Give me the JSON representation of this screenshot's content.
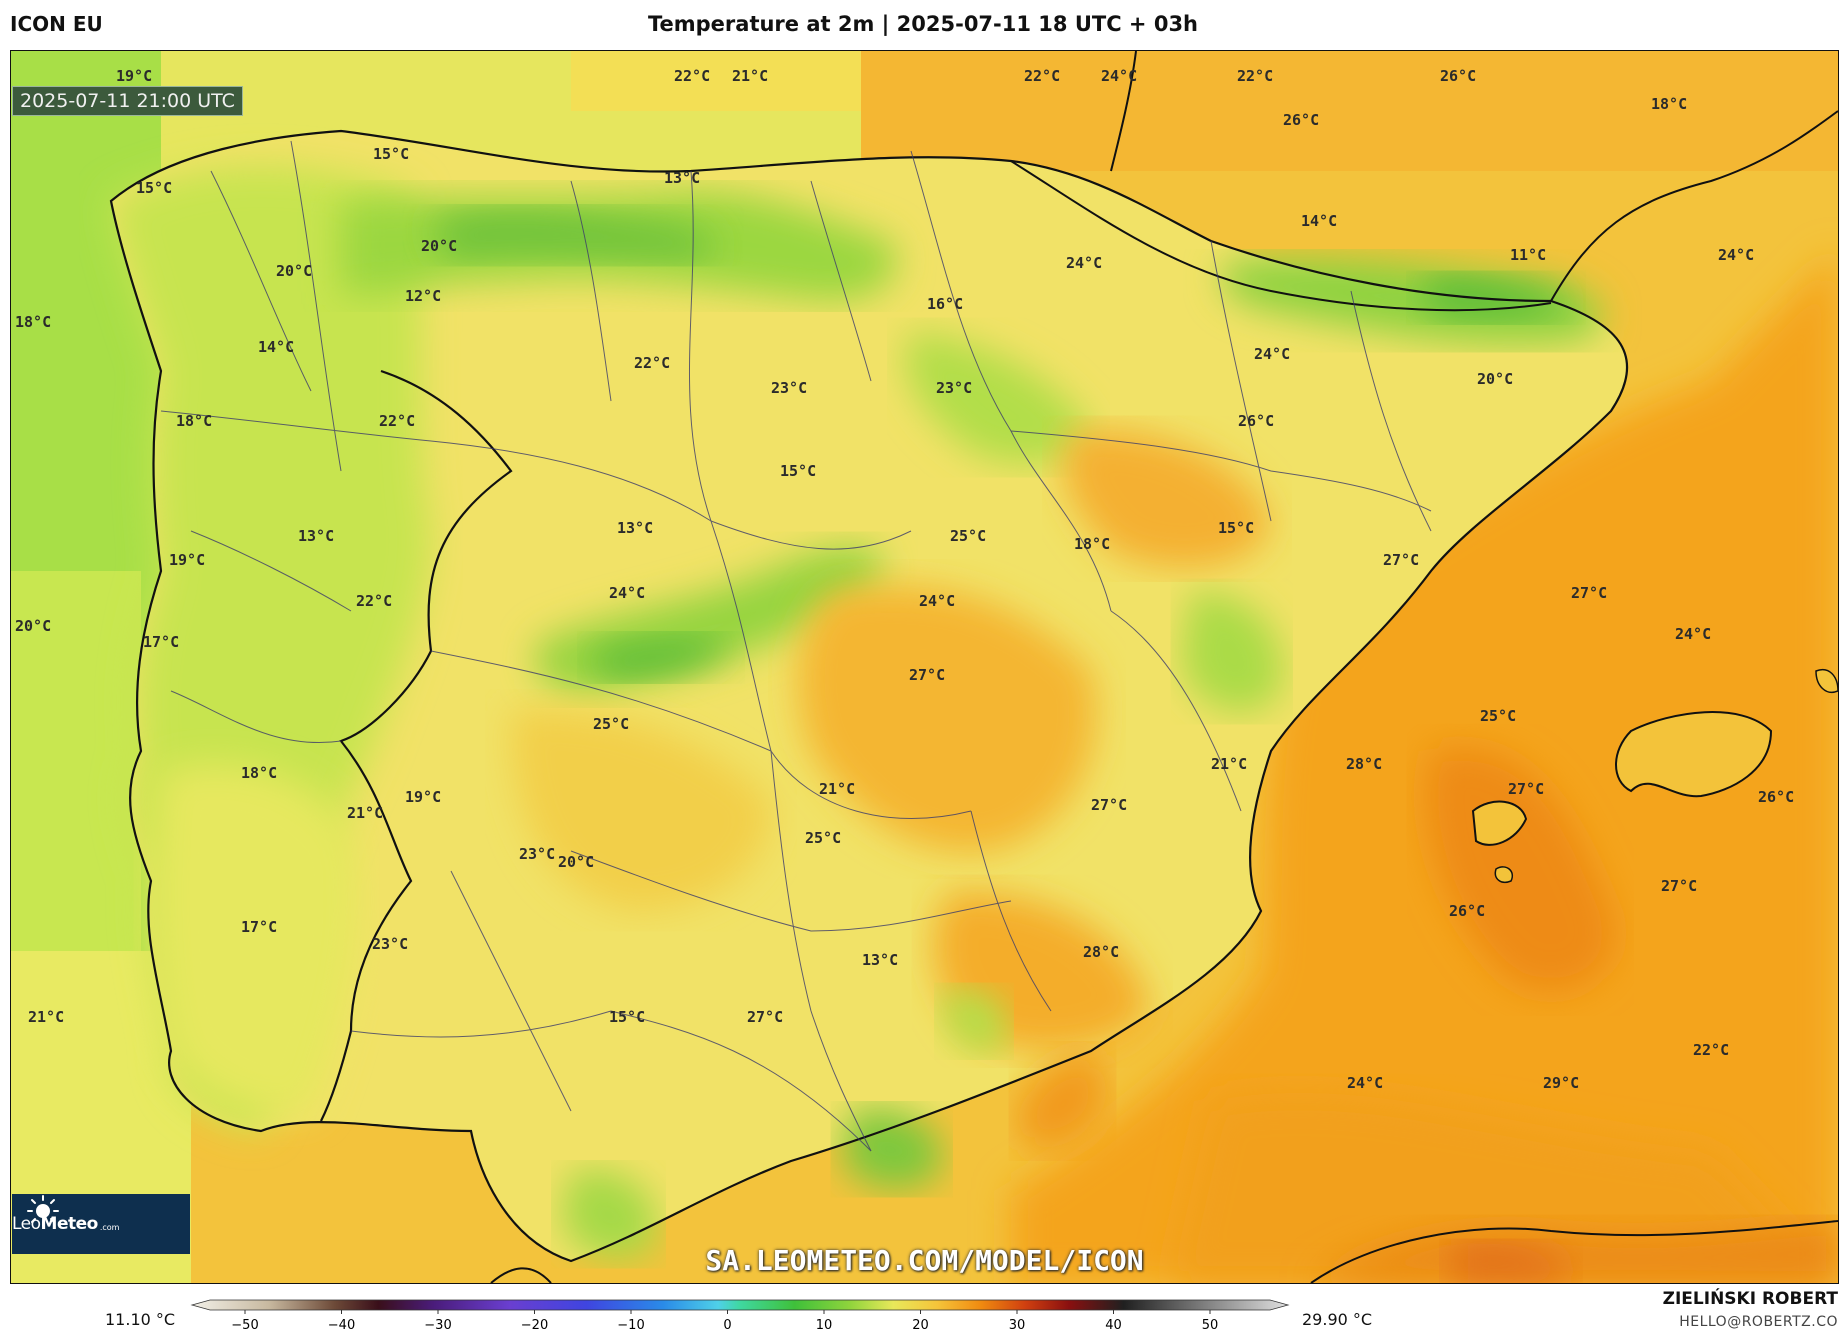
{
  "header": {
    "model": "ICON EU",
    "title": "Temperature at 2m | 2025-07-11 18 UTC + 03h"
  },
  "map": {
    "valid_time": "2025-07-11 21:00 UTC",
    "watermark_url": "SA.LEOMETEO.COM/MODEL/ICON",
    "logo": {
      "brand": "Leo",
      "brand2": "Meteo",
      "suffix": ".com"
    },
    "labels": [
      "19°C",
      "22°C",
      "21°C",
      "22°C",
      "24°C",
      "22°C",
      "26°C",
      "18°C",
      "15°C",
      "15°C",
      "13°C",
      "26°C",
      "20°C",
      "20°C",
      "12°C",
      "14°C",
      "24°C",
      "11°C",
      "24°C",
      "18°C",
      "16°C",
      "14°C",
      "22°C",
      "24°C",
      "23°C",
      "23°C",
      "20°C",
      "18°C",
      "22°C",
      "26°C",
      "15°C",
      "13°C",
      "13°C",
      "25°C",
      "18°C",
      "15°C",
      "19°C",
      "27°C",
      "24°C",
      "22°C",
      "24°C",
      "27°C",
      "20°C",
      "17°C",
      "24°C",
      "27°C",
      "25°C",
      "25°C",
      "21°C",
      "28°C",
      "18°C",
      "21°C",
      "19°C",
      "27°C",
      "26°C",
      "21°C",
      "25°C",
      "27°C",
      "23°C",
      "20°C",
      "26°C",
      "27°C",
      "17°C",
      "23°C",
      "13°C",
      "28°C",
      "21°C",
      "15°C",
      "27°C",
      "22°C",
      "24°C",
      "29°C"
    ],
    "palette": {
      "sea_cold": "#a3df44",
      "land_cool": "#c9e54e",
      "mid": "#f1e86a",
      "warm": "#f5c43c",
      "hot": "#f4a51c",
      "hottest": "#ef8a10"
    }
  },
  "colorbar": {
    "min_label": "11.10 °C",
    "max_label": "29.90 °C",
    "ticks": [
      "−50",
      "−40",
      "−30",
      "−20",
      "−10",
      "0",
      "10",
      "20",
      "30",
      "40",
      "50"
    ]
  },
  "footer": {
    "author": "ZIELIŃSKI ROBERT",
    "email": "HELLO@ROBERTZ.CO"
  }
}
